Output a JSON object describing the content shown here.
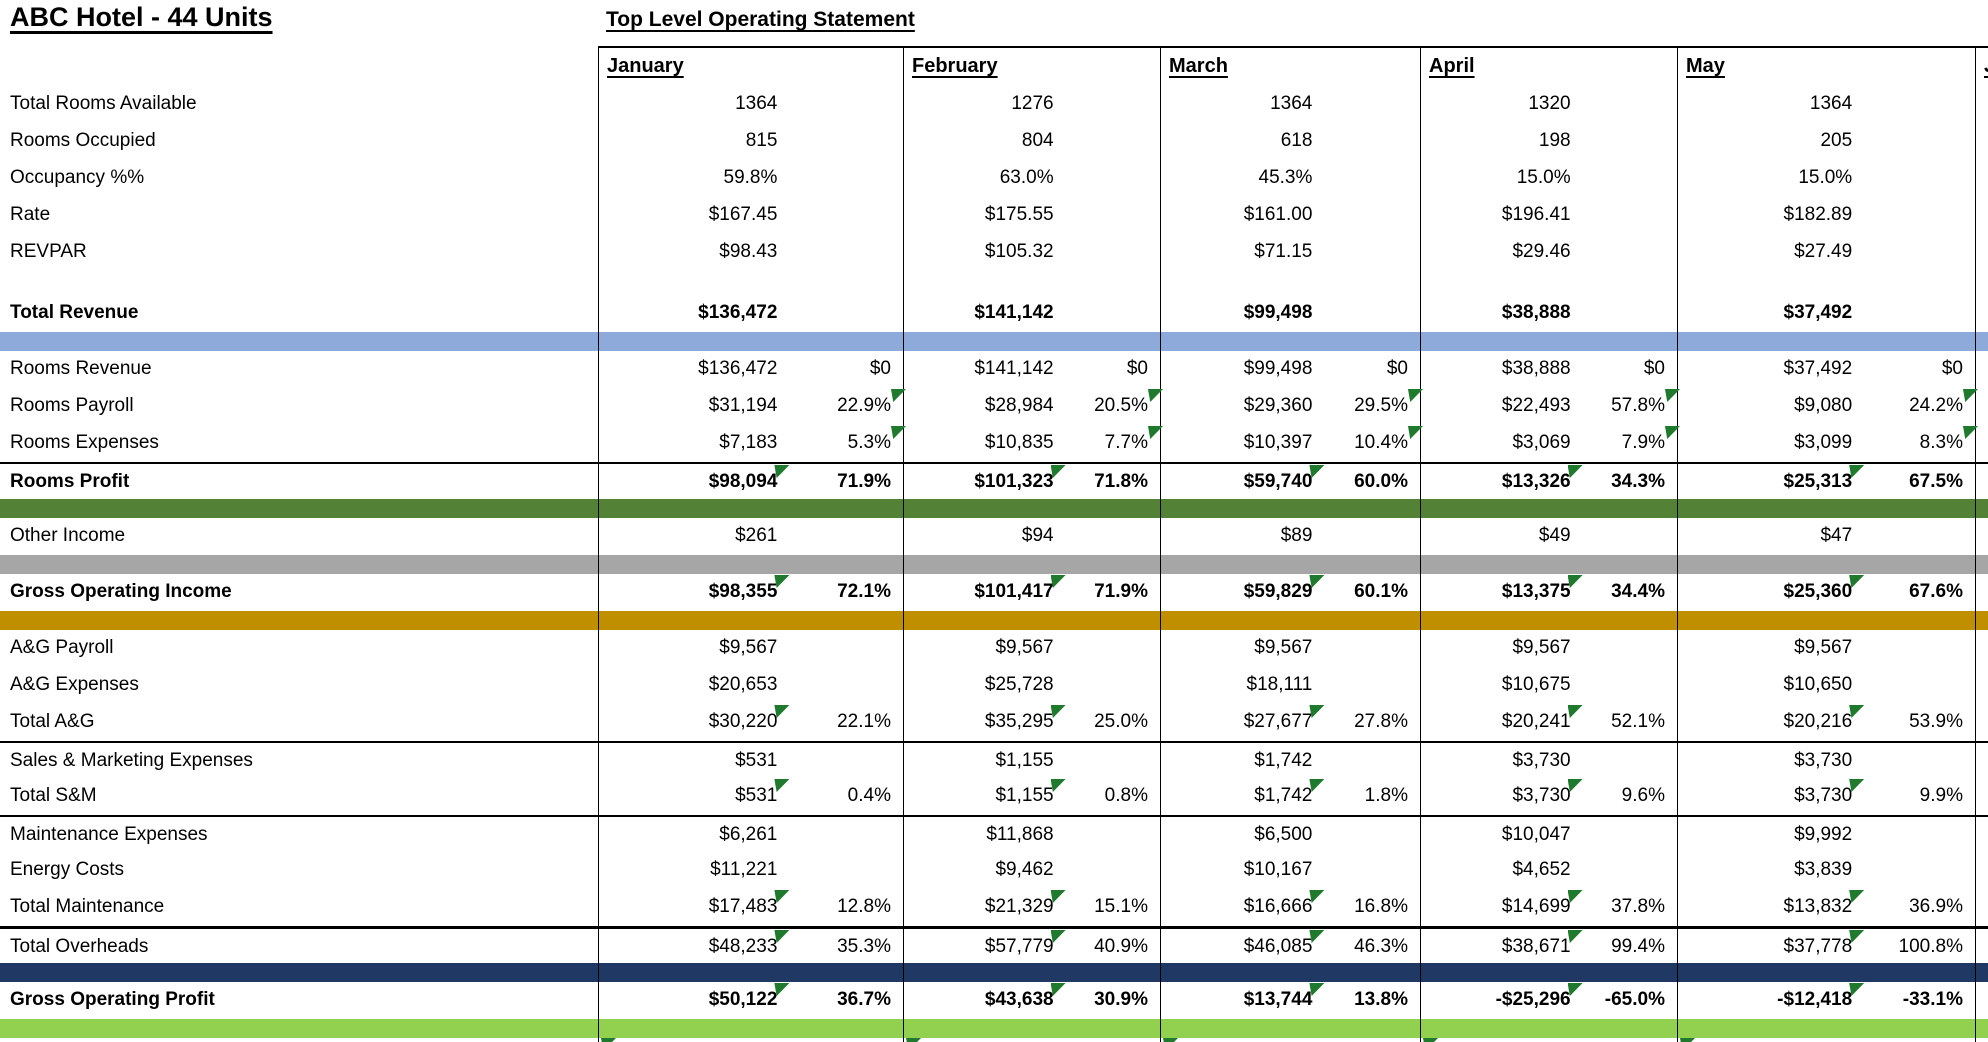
{
  "title": "ABC Hotel - 44 Units",
  "subtitle": "Top Level Operating Statement",
  "months": [
    "January",
    "February",
    "March",
    "April",
    "May"
  ],
  "clipped_next_month": "June",
  "palette": {
    "divider_blue": "#8EAADB",
    "divider_green": "#538135",
    "divider_gray": "#A6A6A6",
    "divider_gold": "#BF8F00",
    "divider_navy": "#1F3864",
    "divider_lightgreen": "#92D050",
    "flag_green": "#1F7A2E",
    "border": "#000000"
  },
  "rows": [
    {
      "kind": "row",
      "label": "Total Rooms Available",
      "single": [
        "1364",
        "1276",
        "1364",
        "1320",
        "1364"
      ]
    },
    {
      "kind": "row",
      "label": "Rooms Occupied",
      "single": [
        "815",
        "804",
        "618",
        "198",
        "205"
      ]
    },
    {
      "kind": "row",
      "label": "Occupancy %%",
      "single": [
        "59.8%",
        "63.0%",
        "45.3%",
        "15.0%",
        "15.0%"
      ]
    },
    {
      "kind": "row",
      "label": "Rate",
      "single": [
        "$167.45",
        "$175.55",
        "$161.00",
        "$196.41",
        "$182.89"
      ]
    },
    {
      "kind": "row",
      "label": "REVPAR",
      "single": [
        "$98.43",
        "$105.32",
        "$71.15",
        "$29.46",
        "$27.49"
      ]
    },
    {
      "kind": "spacer"
    },
    {
      "kind": "row",
      "label": "Total Revenue",
      "bold": true,
      "single": [
        "$136,472",
        "$141,142",
        "$99,498",
        "$38,888",
        "$37,492"
      ]
    },
    {
      "kind": "bar",
      "color": "blue"
    },
    {
      "kind": "row",
      "label": "Rooms Revenue",
      "amt": [
        "$136,472",
        "$141,142",
        "$99,498",
        "$38,888",
        "$37,492"
      ],
      "pct": [
        "$0",
        "$0",
        "$0",
        "$0",
        "$0"
      ]
    },
    {
      "kind": "row",
      "label": "Rooms Payroll",
      "tri": "pct",
      "amt": [
        "$31,194",
        "$28,984",
        "$29,360",
        "$22,493",
        "$9,080"
      ],
      "pct": [
        "22.9%",
        "20.5%",
        "29.5%",
        "57.8%",
        "24.2%"
      ]
    },
    {
      "kind": "row",
      "label": "Rooms Expenses",
      "tri": "pct",
      "amt": [
        "$7,183",
        "$10,835",
        "$10,397",
        "$3,069",
        "$3,099"
      ],
      "pct": [
        "5.3%",
        "7.7%",
        "10.4%",
        "7.9%",
        "8.3%"
      ]
    },
    {
      "kind": "row",
      "label": "Rooms Profit",
      "bold": true,
      "line": 2,
      "tri": "amt",
      "amt": [
        "$98,094",
        "$101,323",
        "$59,740",
        "$13,326",
        "$25,313"
      ],
      "pct": [
        "71.9%",
        "71.8%",
        "60.0%",
        "34.3%",
        "67.5%"
      ]
    },
    {
      "kind": "bar",
      "color": "green"
    },
    {
      "kind": "row",
      "label": "Other Income",
      "single": [
        "$261",
        "$94",
        "$89",
        "$49",
        "$47"
      ]
    },
    {
      "kind": "bar",
      "color": "gray"
    },
    {
      "kind": "row",
      "label": "Gross Operating Income",
      "bold": true,
      "tri": "amt",
      "amt": [
        "$98,355",
        "$101,417",
        "$59,829",
        "$13,375",
        "$25,360"
      ],
      "pct": [
        "72.1%",
        "71.9%",
        "60.1%",
        "34.4%",
        "67.6%"
      ]
    },
    {
      "kind": "bar",
      "color": "gold"
    },
    {
      "kind": "row",
      "label": "A&G Payroll",
      "single": [
        "$9,567",
        "$9,567",
        "$9,567",
        "$9,567",
        "$9,567"
      ]
    },
    {
      "kind": "row",
      "label": "A&G Expenses",
      "single": [
        "$20,653",
        "$25,728",
        "$18,111",
        "$10,675",
        "$10,650"
      ]
    },
    {
      "kind": "row",
      "label": "Total A&G",
      "tri": "amt",
      "amt": [
        "$30,220",
        "$35,295",
        "$27,677",
        "$20,241",
        "$20,216"
      ],
      "pct": [
        "22.1%",
        "25.0%",
        "27.8%",
        "52.1%",
        "53.9%"
      ]
    },
    {
      "kind": "row",
      "label": "Sales & Marketing Expenses",
      "line": 2,
      "single": [
        "$531",
        "$1,155",
        "$1,742",
        "$3,730",
        "$3,730"
      ]
    },
    {
      "kind": "row",
      "label": "Total S&M",
      "tri": "amt",
      "amt": [
        "$531",
        "$1,155",
        "$1,742",
        "$3,730",
        "$3,730"
      ],
      "pct": [
        "0.4%",
        "0.8%",
        "1.8%",
        "9.6%",
        "9.9%"
      ]
    },
    {
      "kind": "row",
      "label": "Maintenance Expenses",
      "line": 2,
      "single": [
        "$6,261",
        "$11,868",
        "$6,500",
        "$10,047",
        "$9,992"
      ]
    },
    {
      "kind": "row",
      "label": "Energy Costs",
      "single": [
        "$11,221",
        "$9,462",
        "$10,167",
        "$4,652",
        "$3,839"
      ]
    },
    {
      "kind": "row",
      "label": "Total Maintenance",
      "tri": "amt",
      "amt": [
        "$17,483",
        "$21,329",
        "$16,666",
        "$14,699",
        "$13,832"
      ],
      "pct": [
        "12.8%",
        "15.1%",
        "16.8%",
        "37.8%",
        "36.9%"
      ]
    },
    {
      "kind": "row",
      "label": "Total Overheads",
      "line": 3,
      "tri": "amt",
      "amt": [
        "$48,233",
        "$57,779",
        "$46,085",
        "$38,671",
        "$37,778"
      ],
      "pct": [
        "35.3%",
        "40.9%",
        "46.3%",
        "99.4%",
        "100.8%"
      ]
    },
    {
      "kind": "bar",
      "color": "navy"
    },
    {
      "kind": "row",
      "label": "Gross Operating Profit",
      "bold": true,
      "tri": "amt",
      "amt": [
        "$50,122",
        "$43,638",
        "$13,744",
        "-$25,296",
        "-$12,418"
      ],
      "pct": [
        "36.7%",
        "30.9%",
        "13.8%",
        "-65.0%",
        "-33.1%"
      ]
    },
    {
      "kind": "bar",
      "color": "lightgreen"
    }
  ]
}
